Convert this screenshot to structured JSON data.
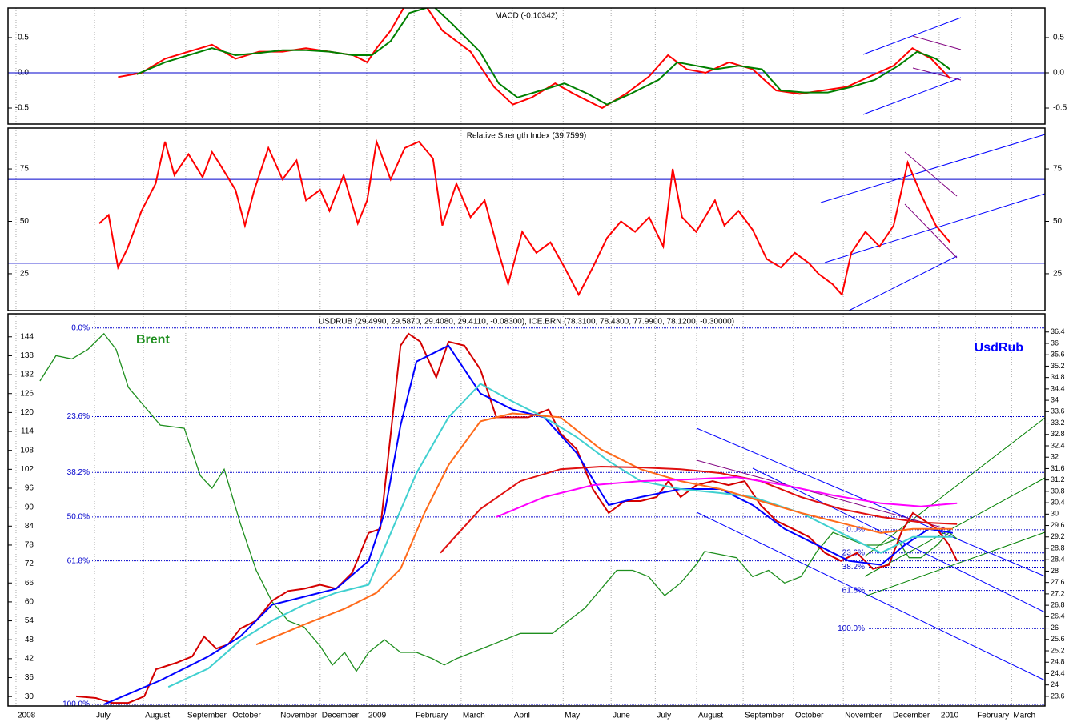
{
  "chart_data": [
    {
      "type": "line",
      "title": "MACD (-0.10342)",
      "ylim": [
        -0.727,
        0.92
      ],
      "yticks": [
        0.5,
        {
          "value": 0,
          "label": "0.0"
        },
        -0.5
      ],
      "levels": [
        0
      ],
      "series": [
        {
          "color": "#ff0000",
          "x": [
            7.5,
            8.0,
            8.5,
            9.0,
            9.5,
            10.0,
            10.5,
            11.0,
            11.5,
            12.0,
            12.5,
            12.8,
            13.0,
            13.3,
            13.6,
            14.0,
            14.4,
            15.0,
            15.5,
            15.9,
            16.3,
            16.8,
            17.2,
            17.8,
            18.3,
            18.8,
            19.2,
            19.6,
            20.0,
            20.5,
            21.0,
            21.5,
            22.0,
            22.5,
            23.0,
            23.5,
            24.0,
            24.4,
            24.8,
            25.2
          ],
          "values": [
            -0.06,
            0.0,
            0.2,
            0.3,
            0.4,
            0.2,
            0.3,
            0.3,
            0.35,
            0.3,
            0.25,
            0.15,
            0.35,
            0.6,
            0.95,
            1.0,
            0.6,
            0.3,
            -0.2,
            -0.45,
            -0.35,
            -0.15,
            -0.3,
            -0.5,
            -0.3,
            -0.05,
            0.25,
            0.05,
            0.0,
            0.15,
            0.05,
            -0.25,
            -0.3,
            -0.25,
            -0.2,
            -0.05,
            0.1,
            0.35,
            0.2,
            -0.08
          ]
        },
        {
          "color": "#008000",
          "x": [
            7.9,
            8.5,
            9.0,
            9.5,
            10.0,
            10.5,
            11.0,
            11.5,
            12.0,
            12.5,
            12.9,
            13.3,
            13.7,
            14.2,
            14.6,
            15.2,
            15.6,
            16.0,
            16.5,
            17.0,
            17.5,
            17.9,
            18.4,
            19.0,
            19.4,
            19.8,
            20.2,
            20.7,
            21.2,
            21.6,
            22.1,
            22.6,
            23.1,
            23.6,
            24.1,
            24.5,
            24.9,
            25.2
          ],
          "values": [
            -0.02,
            0.15,
            0.25,
            0.35,
            0.25,
            0.28,
            0.32,
            0.32,
            0.3,
            0.25,
            0.25,
            0.45,
            0.85,
            0.95,
            0.7,
            0.3,
            -0.15,
            -0.35,
            -0.25,
            -0.15,
            -0.3,
            -0.45,
            -0.3,
            -0.1,
            0.15,
            0.1,
            0.05,
            0.1,
            0.05,
            -0.25,
            -0.28,
            -0.28,
            -0.2,
            -0.1,
            0.1,
            0.3,
            0.2,
            0.05
          ]
        }
      ]
    },
    {
      "type": "line",
      "title": "Relative Strength Index (39.7599)",
      "ylim": [
        7.4,
        94.5
      ],
      "yticks": [
        75,
        50,
        25
      ],
      "levels": [
        70,
        30
      ],
      "series": [
        {
          "color": "#ff0000",
          "x": [
            7.1,
            7.3,
            7.5,
            7.7,
            8.0,
            8.3,
            8.5,
            8.7,
            9.0,
            9.3,
            9.5,
            9.7,
            10.0,
            10.2,
            10.4,
            10.7,
            11.0,
            11.3,
            11.5,
            11.8,
            12.0,
            12.3,
            12.6,
            12.8,
            13.0,
            13.3,
            13.6,
            13.9,
            14.2,
            14.4,
            14.7,
            15.0,
            15.3,
            15.6,
            15.8,
            16.1,
            16.4,
            16.7,
            17.0,
            17.3,
            17.6,
            17.9,
            18.2,
            18.5,
            18.8,
            19.1,
            19.3,
            19.5,
            19.8,
            20.2,
            20.4,
            20.7,
            21.0,
            21.3,
            21.6,
            21.9,
            22.2,
            22.4,
            22.7,
            22.9,
            23.1,
            23.4,
            23.7,
            24.0,
            24.3,
            24.6,
            24.9,
            25.2
          ],
          "values": [
            49,
            53,
            28,
            37,
            55,
            68,
            88,
            72,
            82,
            71,
            83,
            76,
            65,
            48,
            65,
            85,
            70,
            79,
            60,
            65,
            55,
            72,
            49,
            60,
            88,
            70,
            85,
            88,
            80,
            48,
            68,
            52,
            60,
            35,
            20,
            45,
            35,
            40,
            28,
            15,
            28,
            42,
            50,
            45,
            52,
            38,
            75,
            52,
            45,
            60,
            48,
            55,
            46,
            32,
            28,
            35,
            30,
            25,
            20,
            15,
            35,
            45,
            38,
            48,
            78,
            62,
            48,
            40
          ]
        }
      ]
    },
    {
      "type": "line",
      "title": "USDRUB (29.4990, 29.5870, 29.4080, 29.4110, -0.08300), ICE.BRN (78.3100, 78.4300, 77.9900, 78.1200, -0.30000)",
      "xlim": [
        5.16,
        27.22
      ],
      "xticks": [
        {
          "value": 5.33,
          "label": "2008"
        },
        {
          "value": 7,
          "label": "July"
        },
        {
          "value": 8.04,
          "label": "August"
        },
        {
          "value": 8.94,
          "label": "September"
        },
        {
          "value": 9.9,
          "label": "October"
        },
        {
          "value": 10.92,
          "label": "November"
        },
        {
          "value": 11.8,
          "label": "December"
        },
        {
          "value": 12.79,
          "label": "2009"
        },
        {
          "value": 13.8,
          "label": "February"
        },
        {
          "value": 14.8,
          "label": "March"
        },
        {
          "value": 15.89,
          "label": "April"
        },
        {
          "value": 16.97,
          "label": "May"
        },
        {
          "value": 17.99,
          "label": "June"
        },
        {
          "value": 18.93,
          "label": "July"
        },
        {
          "value": 19.81,
          "label": "August"
        },
        {
          "value": 20.8,
          "label": "September"
        },
        {
          "value": 21.87,
          "label": "October"
        },
        {
          "value": 22.93,
          "label": "November"
        },
        {
          "value": 23.95,
          "label": "December"
        },
        {
          "value": 24.97,
          "label": "2010"
        },
        {
          "value": 25.74,
          "label": "February"
        },
        {
          "value": 26.51,
          "label": "March"
        }
      ],
      "ylim": [
        27,
        151.3
      ],
      "yticks": [
        30,
        36,
        42,
        48,
        54,
        60,
        66,
        72,
        78,
        84,
        90,
        96,
        102,
        108,
        114,
        120,
        126,
        132,
        138,
        144
      ],
      "y2lim": [
        23.26,
        37.04
      ],
      "y2ticks": [
        36.4,
        36.0,
        35.6,
        35.2,
        34.8,
        34.4,
        34.0,
        33.6,
        33.2,
        32.8,
        32.4,
        32.0,
        31.6,
        31.2,
        30.8,
        30.4,
        30.0,
        29.6,
        29.2,
        28.8,
        28.4,
        28.0,
        27.6,
        27.2,
        26.8,
        26.4,
        26.0,
        25.6,
        25.2,
        24.8,
        24.4,
        24.0,
        23.6
      ],
      "fib_levels": [
        {
          "label": "0.0%",
          "value": 146.8
        },
        {
          "label": "23.6%",
          "value": 118.7
        },
        {
          "label": "38.2%",
          "value": 101.0
        },
        {
          "label": "50.0%",
          "value": 86.9
        },
        {
          "label": "61.8%",
          "value": 73.0
        },
        {
          "label": "100.0%",
          "value": 27.5
        }
      ],
      "fib_levels_2": [
        {
          "label": "0.0%",
          "value": 29.45
        },
        {
          "label": "23.6%",
          "value": 28.64
        },
        {
          "label": "38.2%",
          "value": 28.14
        },
        {
          "label": "61.8%",
          "value": 27.32
        },
        {
          "label": "100.0%",
          "value": 25.98
        }
      ],
      "series": [
        {
          "name": "Brent",
          "color": "#1f8f1f",
          "x": [
            5.84,
            6.18,
            6.52,
            6.86,
            7.2,
            7.46,
            7.72,
            8.06,
            8.4,
            8.91,
            9.25,
            9.5,
            9.76,
            10.1,
            10.44,
            10.78,
            11.12,
            11.46,
            11.8,
            12.06,
            12.32,
            12.57,
            12.83,
            13.17,
            13.51,
            13.85,
            14.19,
            14.44,
            14.7,
            15.04,
            15.38,
            15.72,
            16.06,
            16.4,
            16.74,
            17.08,
            17.43,
            17.77,
            18.11,
            18.45,
            18.79,
            19.13,
            19.47,
            19.81,
            19.98,
            20.32,
            20.66,
            21.0,
            21.34,
            21.68,
            22.03,
            22.37,
            22.71,
            23.05,
            23.39,
            23.73,
            24.07,
            24.33,
            24.58,
            24.92,
            25.18,
            25.35
          ],
          "values": [
            130,
            138,
            137,
            140,
            145,
            140,
            128,
            122,
            116,
            115,
            100,
            96,
            102,
            85,
            70,
            60,
            54,
            52,
            46,
            40,
            44,
            38,
            44,
            48,
            44,
            44,
            42,
            40,
            42,
            44,
            46,
            48,
            50,
            50,
            50,
            54,
            58,
            64,
            70,
            70,
            68,
            62,
            66,
            72,
            76,
            75,
            74,
            68,
            70,
            66,
            68,
            76,
            82,
            80,
            78,
            78,
            80,
            74,
            74,
            78,
            82,
            80
          ]
        },
        {
          "name": "UsdRub",
          "color": "#d40000",
          "axis": "y2",
          "x": [
            6.61,
            7.03,
            7.37,
            7.72,
            8.06,
            8.31,
            8.74,
            9.08,
            9.33,
            9.59,
            9.84,
            10.1,
            10.44,
            10.78,
            11.12,
            11.46,
            11.8,
            12.14,
            12.48,
            12.83,
            13.08,
            13.34,
            13.51,
            13.68,
            13.93,
            14.27,
            14.53,
            14.87,
            15.21,
            15.55,
            15.89,
            16.23,
            16.66,
            16.91,
            17.26,
            17.6,
            17.94,
            18.28,
            18.62,
            18.96,
            19.21,
            19.47,
            19.81,
            20.15,
            20.49,
            20.83,
            21.17,
            21.51,
            21.86,
            22.2,
            22.54,
            22.88,
            23.22,
            23.56,
            23.9,
            24.16,
            24.41,
            24.67,
            24.92,
            25.18,
            25.35
          ],
          "values": [
            23.6,
            23.54,
            23.37,
            23.37,
            23.6,
            24.55,
            24.78,
            25.0,
            25.7,
            25.28,
            25.42,
            25.98,
            26.26,
            26.96,
            27.3,
            27.38,
            27.52,
            27.38,
            27.94,
            29.34,
            29.48,
            33.4,
            35.92,
            36.34,
            36.06,
            34.8,
            36.06,
            35.92,
            35.08,
            33.4,
            33.4,
            33.4,
            33.68,
            32.84,
            32.28,
            30.88,
            30.04,
            30.46,
            30.46,
            30.6,
            31.16,
            30.6,
            31.02,
            31.16,
            31.02,
            31.16,
            30.32,
            29.76,
            29.48,
            29.2,
            28.64,
            28.36,
            28.64,
            28.08,
            28.22,
            29.34,
            30.04,
            29.76,
            29.48,
            28.92,
            28.36
          ]
        },
        {
          "color": "#0000ff",
          "axis": "y2",
          "x": [
            7.2,
            8.4,
            9.42,
            10.1,
            10.78,
            11.46,
            12.14,
            12.83,
            13.17,
            13.51,
            13.85,
            14.53,
            15.21,
            15.89,
            16.57,
            17.26,
            17.94,
            18.62,
            19.47,
            20.32,
            21.0,
            21.68,
            22.37,
            23.05,
            23.73,
            24.24,
            24.75,
            25.26
          ],
          "values": [
            23.32,
            24.16,
            25.0,
            25.7,
            26.82,
            27.1,
            27.38,
            28.36,
            30.04,
            33.12,
            35.36,
            35.92,
            34.24,
            33.68,
            33.4,
            32.14,
            30.32,
            30.6,
            30.88,
            30.88,
            30.32,
            29.48,
            28.92,
            28.36,
            28.22,
            28.92,
            29.48,
            29.34
          ]
        },
        {
          "color": "#40d0d0",
          "axis": "y2",
          "x": [
            8.57,
            9.42,
            10.1,
            10.78,
            11.46,
            12.14,
            12.83,
            13.34,
            13.85,
            14.53,
            15.21,
            15.89,
            16.57,
            17.26,
            17.94,
            18.62,
            19.47,
            20.32,
            21.0,
            22.03,
            23.05,
            23.73,
            24.41,
            25.26
          ],
          "values": [
            23.93,
            24.58,
            25.56,
            26.26,
            26.82,
            27.24,
            27.52,
            29.48,
            31.44,
            33.4,
            34.58,
            33.96,
            33.4,
            32.7,
            31.86,
            31.16,
            30.88,
            30.74,
            30.6,
            30.04,
            29.2,
            28.64,
            29.2,
            29.2
          ]
        },
        {
          "color": "#ff6a1a",
          "axis": "y2",
          "x": [
            10.44,
            11.46,
            12.32,
            13.0,
            13.51,
            14.02,
            14.53,
            15.21,
            15.89,
            16.91,
            17.77,
            18.62,
            19.47,
            20.32,
            21.17,
            22.03,
            23.05,
            23.73,
            24.41,
            25.26
          ],
          "values": [
            25.42,
            26.12,
            26.68,
            27.24,
            28.08,
            30.04,
            31.72,
            33.26,
            33.54,
            33.4,
            32.28,
            31.58,
            31.16,
            30.88,
            30.46,
            30.04,
            29.62,
            29.34,
            29.48,
            29.48
          ]
        },
        {
          "color": "#e01010",
          "axis": "y2",
          "x": [
            14.36,
            15.21,
            16.06,
            16.91,
            17.77,
            18.62,
            19.47,
            20.32,
            21.17,
            22.03,
            22.88,
            23.73,
            24.58,
            25.35
          ],
          "values": [
            28.64,
            30.18,
            31.16,
            31.58,
            31.67,
            31.64,
            31.58,
            31.44,
            31.16,
            30.6,
            30.18,
            29.9,
            29.71,
            29.65
          ]
        },
        {
          "color": "#ff00ff",
          "axis": "y2",
          "x": [
            15.55,
            16.57,
            17.6,
            18.62,
            19.64,
            20.66,
            21.68,
            22.71,
            23.73,
            24.58,
            25.35
          ],
          "values": [
            29.9,
            30.6,
            31.02,
            31.16,
            31.22,
            31.3,
            31.02,
            30.66,
            30.38,
            30.27,
            30.38
          ]
        }
      ]
    }
  ]
}
